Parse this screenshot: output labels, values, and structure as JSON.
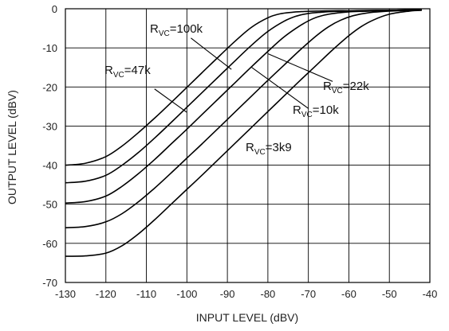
{
  "chart_data": {
    "type": "line",
    "xlabel": "INPUT LEVEL  (dBV)",
    "ylabel": "OUTPUT LEVEL (dBV)",
    "xlim": [
      -130,
      -40
    ],
    "ylim": [
      -70,
      0
    ],
    "x_ticks": [
      "-130",
      "-120",
      "-110",
      "-100",
      "-90",
      "-80",
      "-70",
      "-60",
      "-50",
      "-40"
    ],
    "y_ticks": [
      "0",
      "-10",
      "-20",
      "-30",
      "-40",
      "-50",
      "-60",
      "-70"
    ],
    "grid": true,
    "series": [
      {
        "name": "RVC=100k",
        "label_main": "R",
        "label_sub": "VC",
        "label_rest": "=100k",
        "x": [
          -130,
          -125,
          -120,
          -116,
          -112,
          -108,
          -104,
          -100,
          -96,
          -92,
          -88,
          -84,
          -80,
          -77,
          -74,
          -71,
          -68,
          -64,
          -60,
          -55,
          -50,
          -45,
          -42
        ],
        "y": [
          -40,
          -39.5,
          -37.8,
          -35.1,
          -31.7,
          -28,
          -24.1,
          -20.1,
          -16.1,
          -12.1,
          -8.2,
          -4.7,
          -2.3,
          -1.3,
          -0.9,
          -0.7,
          -0.6,
          -0.5,
          -0.5,
          -0.4,
          -0.4,
          -0.3,
          -0.3
        ]
      },
      {
        "name": "RVC=47k",
        "label_main": "R",
        "label_sub": "VC",
        "label_rest": "=47k",
        "x": [
          -130,
          -125,
          -120,
          -116,
          -112,
          -108,
          -104,
          -100,
          -96,
          -92,
          -88,
          -84,
          -80,
          -76,
          -73,
          -70,
          -67,
          -64,
          -60,
          -55,
          -50,
          -45,
          -42
        ],
        "y": [
          -44.5,
          -44.1,
          -42.6,
          -40,
          -36.8,
          -33.1,
          -29.2,
          -25.2,
          -21.2,
          -17.2,
          -13.2,
          -9.3,
          -5.8,
          -3.2,
          -1.9,
          -1.2,
          -0.9,
          -0.7,
          -0.6,
          -0.5,
          -0.4,
          -0.3,
          -0.3
        ]
      },
      {
        "name": "RVC=22k",
        "label_main": "R",
        "label_sub": "VC",
        "label_rest": "=22k",
        "x": [
          -130,
          -125,
          -120,
          -116,
          -112,
          -108,
          -104,
          -100,
          -96,
          -92,
          -88,
          -84,
          -80,
          -76,
          -72,
          -69,
          -66,
          -63,
          -60,
          -55,
          -50,
          -45,
          -42
        ],
        "y": [
          -49.7,
          -49.3,
          -47.9,
          -45.4,
          -42.2,
          -38.6,
          -34.7,
          -30.8,
          -26.8,
          -22.8,
          -18.8,
          -14.8,
          -10.9,
          -7.2,
          -4.3,
          -2.6,
          -1.6,
          -1.1,
          -0.8,
          -0.6,
          -0.4,
          -0.3,
          -0.3
        ]
      },
      {
        "name": "RVC=10k",
        "label_main": "R",
        "label_sub": "VC",
        "label_rest": "=10k",
        "x": [
          -130,
          -125,
          -120,
          -116,
          -112,
          -108,
          -104,
          -100,
          -96,
          -92,
          -88,
          -84,
          -80,
          -76,
          -72,
          -68,
          -65,
          -62,
          -59,
          -55,
          -50,
          -45,
          -42
        ],
        "y": [
          -56,
          -55.7,
          -54.5,
          -52.4,
          -49.4,
          -45.9,
          -42.1,
          -38.2,
          -34.3,
          -30.3,
          -26.3,
          -22.3,
          -18.3,
          -14.4,
          -10.5,
          -6.9,
          -4.6,
          -2.9,
          -1.8,
          -1,
          -0.6,
          -0.4,
          -0.3
        ]
      },
      {
        "name": "RVC=3k9",
        "label_main": "R",
        "label_sub": "VC",
        "label_rest": "=3k9",
        "x": [
          -130,
          -125,
          -120,
          -116,
          -112,
          -108,
          -104,
          -100,
          -96,
          -92,
          -88,
          -84,
          -80,
          -76,
          -72,
          -68,
          -64,
          -60,
          -57,
          -54,
          -50,
          -45,
          -42
        ],
        "y": [
          -63.3,
          -63.2,
          -62.5,
          -60.6,
          -57.6,
          -54,
          -50.1,
          -46.2,
          -42.3,
          -38.3,
          -34.3,
          -30.3,
          -26.3,
          -22.3,
          -18.3,
          -14.4,
          -10.5,
          -6.9,
          -4.6,
          -2.9,
          -1.4,
          -0.6,
          -0.4
        ]
      }
    ]
  }
}
